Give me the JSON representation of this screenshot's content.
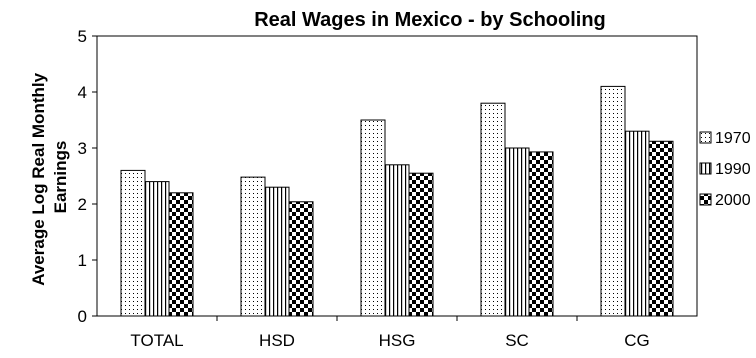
{
  "chart_data": {
    "type": "bar",
    "title": "Real Wages in Mexico - by Schooling",
    "xlabel": "",
    "ylabel_lines": [
      "Average Log Real Monthly",
      "Earnings"
    ],
    "categories": [
      "TOTAL",
      "HSD",
      "HSG",
      "SC",
      "CG"
    ],
    "ylim": [
      0,
      5
    ],
    "yticks": [
      "0",
      "1",
      "2",
      "3",
      "4",
      "5"
    ],
    "grid": false,
    "legend_position": "right",
    "series": [
      {
        "name": "1970",
        "pattern": "dots",
        "values": [
          2.6,
          2.48,
          3.5,
          3.8,
          4.1
        ]
      },
      {
        "name": "1990",
        "pattern": "vertical-lines",
        "values": [
          2.4,
          2.3,
          2.7,
          3.0,
          3.3
        ]
      },
      {
        "name": "2000",
        "pattern": "checker",
        "values": [
          2.2,
          2.04,
          2.55,
          2.93,
          3.12
        ]
      }
    ]
  }
}
